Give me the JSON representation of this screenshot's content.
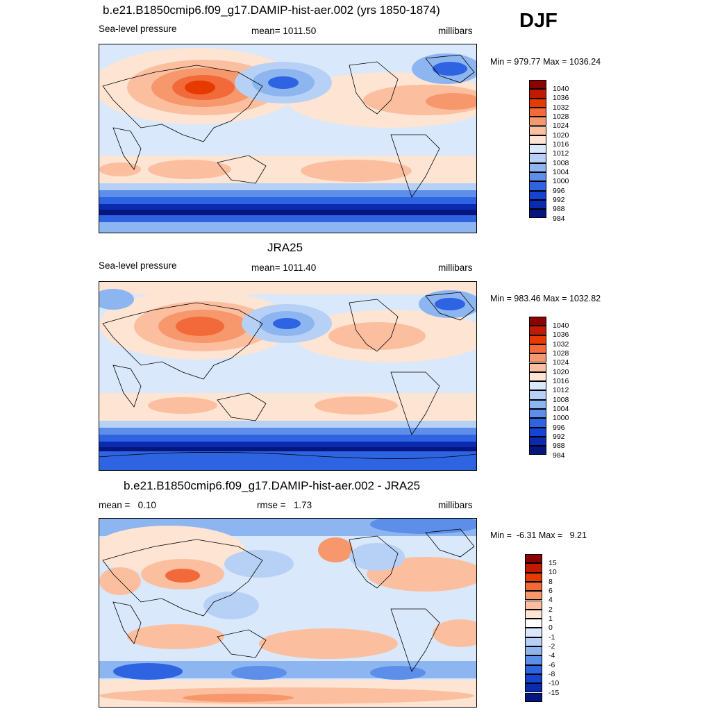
{
  "season": "DJF",
  "panels": [
    {
      "id": "model",
      "title": "b.e21.B1850cmip6.f09_g17.DAMIP-hist-aer.002 (yrs 1850-1874)",
      "left_label": "Sea-level pressure",
      "center_label": "mean= 1011.50",
      "right_label": "millibars",
      "minmax": "Min = 979.77 Max = 1036.24",
      "colorbar": {
        "levels": [
          "1040",
          "1036",
          "1032",
          "1028",
          "1024",
          "1020",
          "1016",
          "1012",
          "1008",
          "1004",
          "1000",
          "996",
          "992",
          "988",
          "984"
        ],
        "colors": [
          "#8b0000",
          "#c21a00",
          "#e63a00",
          "#f26a3a",
          "#f7976c",
          "#fbbfa0",
          "#fde4d3",
          "#d9e8fb",
          "#b7d1f6",
          "#8db5f0",
          "#5d8ee9",
          "#2e63e2",
          "#1543d2",
          "#0a2bb0",
          "#05167f"
        ]
      }
    },
    {
      "id": "obs",
      "title": "JRA25",
      "left_label": "Sea-level pressure",
      "center_label": "mean= 1011.40",
      "right_label": "millibars",
      "minmax": "Min = 983.46 Max = 1032.82",
      "colorbar": {
        "levels": [
          "1040",
          "1036",
          "1032",
          "1028",
          "1024",
          "1020",
          "1016",
          "1012",
          "1008",
          "1004",
          "1000",
          "996",
          "992",
          "988",
          "984"
        ],
        "colors": [
          "#8b0000",
          "#c21a00",
          "#e63a00",
          "#f26a3a",
          "#f7976c",
          "#fbbfa0",
          "#fde4d3",
          "#d9e8fb",
          "#b7d1f6",
          "#8db5f0",
          "#5d8ee9",
          "#2e63e2",
          "#1543d2",
          "#0a2bb0",
          "#05167f"
        ]
      }
    },
    {
      "id": "diff",
      "title": "b.e21.B1850cmip6.f09_g17.DAMIP-hist-aer.002 - JRA25",
      "left_label": "mean =   0.10",
      "center_label": "rmse =   1.73",
      "right_label": "millibars",
      "minmax": "Min =  -6.31 Max =   9.21",
      "colorbar": {
        "levels": [
          "15",
          "10",
          "8",
          "6",
          "4",
          "2",
          "1",
          "0",
          "-1",
          "-2",
          "-4",
          "-6",
          "-8",
          "-10",
          "-15"
        ],
        "colors": [
          "#8b0000",
          "#c21a00",
          "#e63a00",
          "#f26a3a",
          "#f7976c",
          "#fbbfa0",
          "#fde4d3",
          "#ffffff",
          "#d9e8fb",
          "#b7d1f6",
          "#8db5f0",
          "#5d8ee9",
          "#2e63e2",
          "#1543d2",
          "#0a2bb0",
          "#05167f"
        ]
      }
    }
  ]
}
